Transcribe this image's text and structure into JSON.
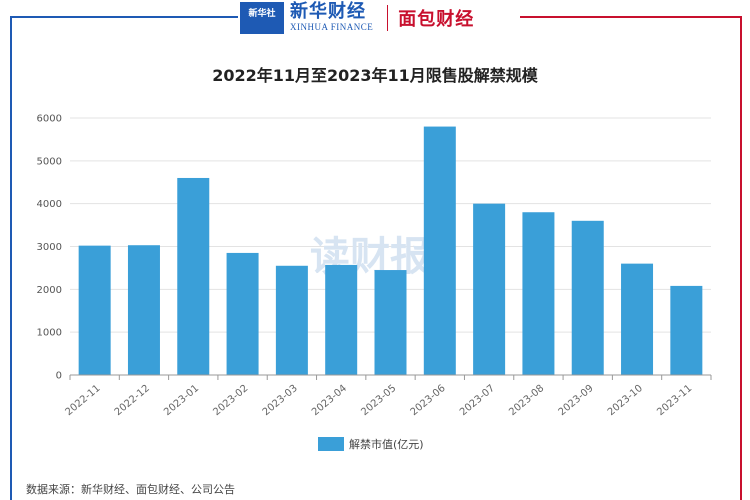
{
  "header": {
    "xinhua_badge": "新华社",
    "xinhua_name": "新华财经",
    "xinhua_english": "XINHUA FINANCE",
    "partner_name": "面包财经"
  },
  "watermark": "读财报",
  "source": "数据来源：新华财经、面包财经、公司公告",
  "colors": {
    "bar": "#3a9fd8",
    "left_frame": "#1e5ab4",
    "right_frame": "#c8102e"
  },
  "chart_data": {
    "type": "bar",
    "title": "2022年11月至2023年11月限售股解禁规模",
    "categories": [
      "2022-11",
      "2022-12",
      "2023-01",
      "2023-02",
      "2023-03",
      "2023-04",
      "2023-05",
      "2023-06",
      "2023-07",
      "2023-08",
      "2023-09",
      "2023-10",
      "2023-11"
    ],
    "series": [
      {
        "name": "解禁市值(亿元)",
        "values": [
          3020,
          3030,
          4600,
          2850,
          2550,
          2570,
          2450,
          5800,
          4000,
          3800,
          3600,
          2600,
          2080
        ]
      }
    ],
    "xlabel": "",
    "ylabel": "",
    "ylim": [
      0,
      6000
    ],
    "yticks": [
      0,
      1000,
      2000,
      3000,
      4000,
      5000,
      6000
    ],
    "grid": true,
    "legend_position": "bottom"
  }
}
